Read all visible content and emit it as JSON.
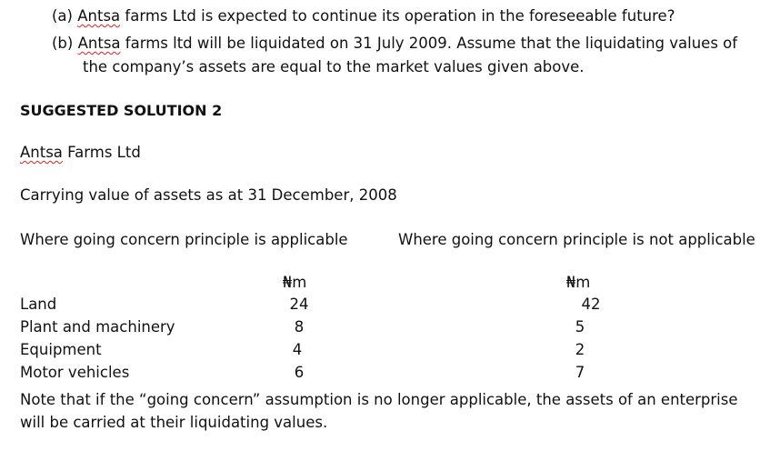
{
  "questions": [
    {
      "marker": "(a)",
      "name": "Antsa",
      "rest": " farms Ltd is expected to continue its operation in the foreseeable future?"
    },
    {
      "marker": "(b)",
      "name": "Antsa",
      "rest": " farms ltd will be liquidated on 31 July 2009. Assume that the liquidating values of",
      "line2": "the company’s assets are equal to the market values given above."
    }
  ],
  "heading": "SUGGESTED SOLUTION 2",
  "company": {
    "name": "Antsa",
    "rest": " Farms Ltd"
  },
  "subtitle": "Carrying value of assets as at 31 December, 2008",
  "columns": {
    "left_header": "Where going concern principle is applicable",
    "right_header": "Where going concern principle is not applicable",
    "unit_left": "₦m",
    "unit_right": "₦m"
  },
  "rows": [
    {
      "label": "Land",
      "going": "24",
      "not_going": "42"
    },
    {
      "label": "Plant and machinery",
      "going": "8",
      "not_going": "5"
    },
    {
      "label": "Equipment",
      "going": "4",
      "not_going": "2"
    },
    {
      "label": "Motor vehicles",
      "going": "6",
      "not_going": "7"
    }
  ],
  "note": {
    "line1": "Note that if the “going concern” assumption is no longer applicable, the assets of an enterprise",
    "line2": "will be carried at their liquidating values."
  }
}
